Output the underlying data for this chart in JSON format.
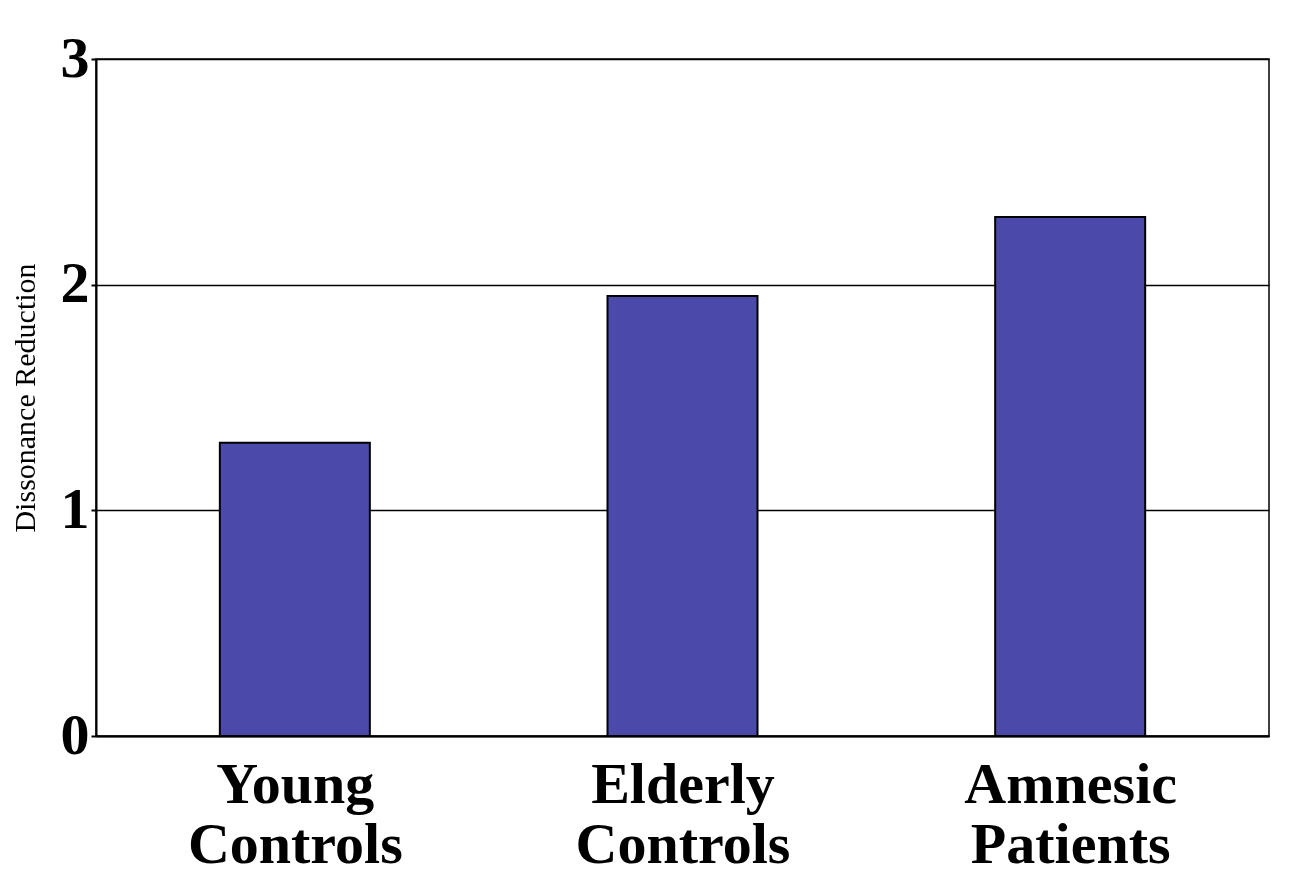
{
  "chart_data": {
    "type": "bar",
    "ylabel": "Dissonance Reduction",
    "categories": [
      "Young Controls",
      "Elderly Controls",
      "Amnesic Patients"
    ],
    "values": [
      1.3,
      1.95,
      2.3
    ],
    "color": "#4b4aab",
    "ylim": [
      0,
      3
    ],
    "yticks": [
      0,
      1,
      2,
      3
    ],
    "grid": "y"
  }
}
